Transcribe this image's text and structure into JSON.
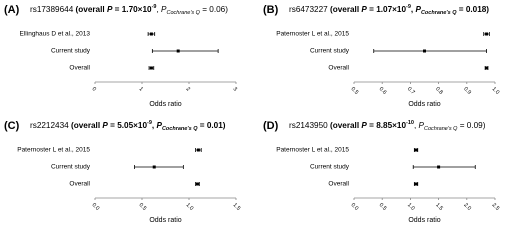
{
  "chart_data": [
    {
      "type": "forest",
      "panel": "(A)",
      "title_parts": [
        {
          "text": "rs17389644 ",
          "style": "normal"
        },
        {
          "text": "(overall ",
          "style": "bold"
        },
        {
          "text": "P",
          "style": "bold-italic"
        },
        {
          "text": " = 1.70×10",
          "style": "bold"
        },
        {
          "text": "-9",
          "style": "bold-sup"
        },
        {
          "text": ", ",
          "style": "normal"
        },
        {
          "text": "P",
          "style": "italic"
        },
        {
          "text": "Cochrane's Q",
          "style": "italic-sub"
        },
        {
          "text": " = 0.06)",
          "style": "normal"
        }
      ],
      "categories": [
        "Ellinghaus D et al., 2013",
        "Current study",
        "Overall"
      ],
      "values": [
        1.2,
        1.77,
        1.2
      ],
      "ci_lower": [
        1.13,
        1.22,
        1.15
      ],
      "ci_upper": [
        1.27,
        2.62,
        1.25
      ],
      "xlabel": "Odds ratio",
      "xlim": [
        0,
        3
      ],
      "xticks": [
        0,
        1,
        2,
        3
      ],
      "color": "#000000"
    },
    {
      "type": "forest",
      "panel": "(B)",
      "title_parts": [
        {
          "text": "rs6473227 ",
          "style": "normal"
        },
        {
          "text": "(overall ",
          "style": "bold"
        },
        {
          "text": "P",
          "style": "bold-italic"
        },
        {
          "text": " = 1.07×10",
          "style": "bold"
        },
        {
          "text": "-9",
          "style": "bold-sup"
        },
        {
          "text": ", ",
          "style": "bold"
        },
        {
          "text": "P",
          "style": "bold-italic"
        },
        {
          "text": "Cochrane's Q",
          "style": "bold-italic-sub"
        },
        {
          "text": " = 0.018)",
          "style": "bold"
        }
      ],
      "categories": [
        "Paternoster L et al., 2015",
        "Current study",
        "Overall"
      ],
      "values": [
        0.97,
        0.75,
        0.97
      ],
      "ci_lower": [
        0.96,
        0.57,
        0.965
      ],
      "ci_upper": [
        0.98,
        0.97,
        0.975
      ],
      "xlabel": "Odds ratio",
      "xlim": [
        0.5,
        1.0
      ],
      "xticks": [
        0.5,
        0.6,
        0.7,
        0.8,
        0.9,
        {
          "value": 1.0,
          "label": "1.0"
        }
      ],
      "color": "#000000"
    },
    {
      "type": "forest",
      "panel": "(C)",
      "title_parts": [
        {
          "text": "rs2212434 ",
          "style": "normal"
        },
        {
          "text": "(overall ",
          "style": "bold"
        },
        {
          "text": "P",
          "style": "bold-italic"
        },
        {
          "text": " = 5.05×10",
          "style": "bold"
        },
        {
          "text": "-9",
          "style": "bold-sup"
        },
        {
          "text": ", ",
          "style": "bold"
        },
        {
          "text": "P",
          "style": "bold-italic"
        },
        {
          "text": "Cochrane's Q",
          "style": "bold-italic-sub"
        },
        {
          "text": " = 0.01)",
          "style": "bold"
        }
      ],
      "categories": [
        "Paternoster L et al., 2015",
        "Current study",
        "Overall"
      ],
      "values": [
        1.1,
        0.63,
        1.09
      ],
      "ci_lower": [
        1.07,
        0.42,
        1.07
      ],
      "ci_upper": [
        1.13,
        0.94,
        1.11
      ],
      "xlabel": "Odds ratio",
      "xlim": [
        0,
        1.5
      ],
      "xticks": [
        {
          "value": 0,
          "label": "0.0"
        },
        0.5,
        {
          "value": 1,
          "label": "1.0"
        },
        1.5
      ],
      "color": "#000000"
    },
    {
      "type": "forest",
      "panel": "(D)",
      "title_parts": [
        {
          "text": "rs2143950 ",
          "style": "normal"
        },
        {
          "text": "(overall ",
          "style": "bold"
        },
        {
          "text": "P",
          "style": "bold-italic"
        },
        {
          "text": " = 8.85×10",
          "style": "bold"
        },
        {
          "text": "-10",
          "style": "bold-sup"
        },
        {
          "text": ", ",
          "style": "normal"
        },
        {
          "text": "P",
          "style": "italic"
        },
        {
          "text": "Cochrane's Q",
          "style": "italic-sub"
        },
        {
          "text": " = 0.09)",
          "style": "normal"
        }
      ],
      "categories": [
        "Paternoster L et al., 2015",
        "Current study",
        "Overall"
      ],
      "values": [
        1.1,
        1.5,
        1.1
      ],
      "ci_lower": [
        1.07,
        1.05,
        1.07
      ],
      "ci_upper": [
        1.13,
        2.15,
        1.13
      ],
      "xlabel": "Odds ratio",
      "xlim": [
        0,
        2.5
      ],
      "xticks": [
        {
          "value": 0,
          "label": "0.0"
        },
        0.5,
        {
          "value": 1,
          "label": "1.0"
        },
        1.5,
        {
          "value": 2,
          "label": "2.0"
        },
        2.5
      ],
      "color": "#000000"
    }
  ]
}
